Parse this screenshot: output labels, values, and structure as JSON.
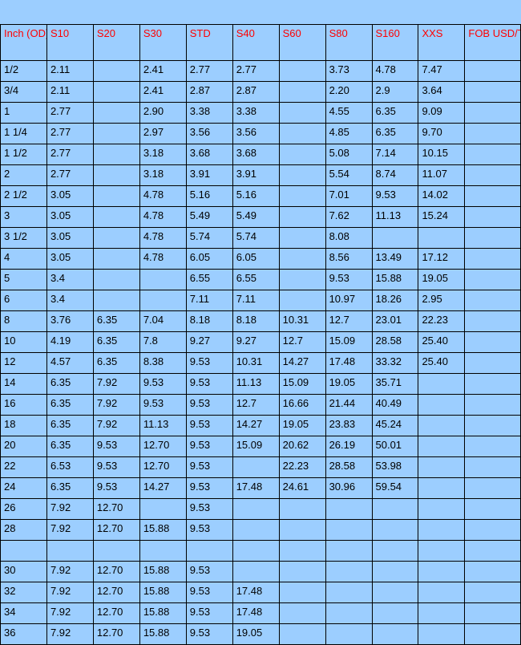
{
  "type": "table",
  "background_color": "#9cceff",
  "border_color": "#000000",
  "header_text_color": "#ff0000",
  "body_text_color": "#000000",
  "font_size_pt": 10,
  "columns": [
    {
      "key": "inch",
      "label": "Inch (OD)"
    },
    {
      "key": "s10",
      "label": "S10"
    },
    {
      "key": "s20",
      "label": "S20"
    },
    {
      "key": "s30",
      "label": "S30"
    },
    {
      "key": "std",
      "label": "STD"
    },
    {
      "key": "s40",
      "label": "S40"
    },
    {
      "key": "s60",
      "label": "S60"
    },
    {
      "key": "s80",
      "label": "S80"
    },
    {
      "key": "s160",
      "label": "S160"
    },
    {
      "key": "xxs",
      "label": "XXS"
    },
    {
      "key": "fob",
      "label": "FOB USD/Ton"
    }
  ],
  "rows": [
    {
      "inch": "1/2",
      "s10": "2.11",
      "s20": "",
      "s30": "2.41",
      "std": "2.77",
      "s40": "2.77",
      "s60": "",
      "s80": "3.73",
      "s160": "4.78",
      "xxs": "7.47",
      "fob": ""
    },
    {
      "inch": "3/4",
      "s10": "2.11",
      "s20": "",
      "s30": "2.41",
      "std": "2.87",
      "s40": "2.87",
      "s60": "",
      "s80": "2.20",
      "s160": "2.9",
      "xxs": "3.64",
      "fob": ""
    },
    {
      "inch": "1",
      "s10": "2.77",
      "s20": "",
      "s30": "2.90",
      "std": "3.38",
      "s40": "3.38",
      "s60": "",
      "s80": "4.55",
      "s160": "6.35",
      "xxs": "9.09",
      "fob": ""
    },
    {
      "inch": "1 1/4",
      "s10": "2.77",
      "s20": "",
      "s30": "2.97",
      "std": "3.56",
      "s40": "3.56",
      "s60": "",
      "s80": "4.85",
      "s160": "6.35",
      "xxs": "9.70",
      "fob": ""
    },
    {
      "inch": "1 1/2",
      "s10": "2.77",
      "s20": "",
      "s30": "3.18",
      "std": "3.68",
      "s40": "3.68",
      "s60": "",
      "s80": "5.08",
      "s160": "7.14",
      "xxs": "10.15",
      "fob": ""
    },
    {
      "inch": "2",
      "s10": "2.77",
      "s20": "",
      "s30": "3.18",
      "std": "3.91",
      "s40": "3.91",
      "s60": "",
      "s80": "5.54",
      "s160": "8.74",
      "xxs": "11.07",
      "fob": ""
    },
    {
      "inch": "2 1/2",
      "s10": "3.05",
      "s20": "",
      "s30": "4.78",
      "std": "5.16",
      "s40": "5.16",
      "s60": "",
      "s80": "7.01",
      "s160": "9.53",
      "xxs": "14.02",
      "fob": ""
    },
    {
      "inch": "3",
      "s10": "3.05",
      "s20": "",
      "s30": "4.78",
      "std": "5.49",
      "s40": "5.49",
      "s60": "",
      "s80": "7.62",
      "s160": "11.13",
      "xxs": "15.24",
      "fob": ""
    },
    {
      "inch": "3 1/2",
      "s10": "3.05",
      "s20": "",
      "s30": "4.78",
      "std": "5.74",
      "s40": "5.74",
      "s60": "",
      "s80": "8.08",
      "s160": "",
      "xxs": "",
      "fob": ""
    },
    {
      "inch": "4",
      "s10": "3.05",
      "s20": "",
      "s30": "4.78",
      "std": "6.05",
      "s40": "6.05",
      "s60": "",
      "s80": "8.56",
      "s160": "13.49",
      "xxs": "17.12",
      "fob": ""
    },
    {
      "inch": "5",
      "s10": "3.4",
      "s20": "",
      "s30": "",
      "std": "6.55",
      "s40": "6.55",
      "s60": "",
      "s80": "9.53",
      "s160": "15.88",
      "xxs": "19.05",
      "fob": ""
    },
    {
      "inch": "6",
      "s10": "3.4",
      "s20": "",
      "s30": "",
      "std": "7.11",
      "s40": "7.11",
      "s60": "",
      "s80": "10.97",
      "s160": "18.26",
      "xxs": "2.95",
      "fob": ""
    },
    {
      "inch": "8",
      "s10": "3.76",
      "s20": "6.35",
      "s30": "7.04",
      "std": "8.18",
      "s40": "8.18",
      "s60": "10.31",
      "s80": "12.7",
      "s160": "23.01",
      "xxs": "22.23",
      "fob": ""
    },
    {
      "inch": "10",
      "s10": "4.19",
      "s20": "6.35",
      "s30": "7.8",
      "std": "9.27",
      "s40": "9.27",
      "s60": "12.7",
      "s80": "15.09",
      "s160": "28.58",
      "xxs": "25.40",
      "fob": ""
    },
    {
      "inch": "12",
      "s10": "4.57",
      "s20": "6.35",
      "s30": "8.38",
      "std": "9.53",
      "s40": "10.31",
      "s60": "14.27",
      "s80": "17.48",
      "s160": "33.32",
      "xxs": "25.40",
      "fob": ""
    },
    {
      "inch": "14",
      "s10": "6.35",
      "s20": "7.92",
      "s30": "9.53",
      "std": "9.53",
      "s40": "11.13",
      "s60": "15.09",
      "s80": "19.05",
      "s160": "35.71",
      "xxs": "",
      "fob": ""
    },
    {
      "inch": "16",
      "s10": "6.35",
      "s20": "7.92",
      "s30": "9.53",
      "std": "9.53",
      "s40": "12.7",
      "s60": "16.66",
      "s80": "21.44",
      "s160": "40.49",
      "xxs": "",
      "fob": ""
    },
    {
      "inch": "18",
      "s10": "6.35",
      "s20": "7.92",
      "s30": "11.13",
      "std": "9.53",
      "s40": "14.27",
      "s60": "19.05",
      "s80": "23.83",
      "s160": "45.24",
      "xxs": "",
      "fob": ""
    },
    {
      "inch": "20",
      "s10": "6.35",
      "s20": "9.53",
      "s30": "12.70",
      "std": "9.53",
      "s40": "15.09",
      "s60": "20.62",
      "s80": "26.19",
      "s160": "50.01",
      "xxs": "",
      "fob": ""
    },
    {
      "inch": "22",
      "s10": "6.53",
      "s20": "9.53",
      "s30": "12.70",
      "std": "9.53",
      "s40": "",
      "s60": "22.23",
      "s80": "28.58",
      "s160": "53.98",
      "xxs": "",
      "fob": ""
    },
    {
      "inch": "24",
      "s10": "6.35",
      "s20": "9.53",
      "s30": "14.27",
      "std": "9.53",
      "s40": "17.48",
      "s60": "24.61",
      "s80": "30.96",
      "s160": "59.54",
      "xxs": "",
      "fob": ""
    },
    {
      "inch": "26",
      "s10": "7.92",
      "s20": "12.70",
      "s30": "",
      "std": "9.53",
      "s40": "",
      "s60": "",
      "s80": "",
      "s160": "",
      "xxs": "",
      "fob": ""
    },
    {
      "inch": "28",
      "s10": "7.92",
      "s20": "12.70",
      "s30": "15.88",
      "std": "9.53",
      "s40": "",
      "s60": "",
      "s80": "",
      "s160": "",
      "xxs": "",
      "fob": ""
    },
    {
      "_blank": true
    },
    {
      "inch": "30",
      "s10": "7.92",
      "s20": "12.70",
      "s30": "15.88",
      "std": "9.53",
      "s40": "",
      "s60": "",
      "s80": "",
      "s160": "",
      "xxs": "",
      "fob": ""
    },
    {
      "inch": "32",
      "s10": "7.92",
      "s20": "12.70",
      "s30": "15.88",
      "std": "9.53",
      "s40": "17.48",
      "s60": "",
      "s80": "",
      "s160": "",
      "xxs": "",
      "fob": ""
    },
    {
      "inch": "34",
      "s10": "7.92",
      "s20": "12.70",
      "s30": "15.88",
      "std": "9.53",
      "s40": "17.48",
      "s60": "",
      "s80": "",
      "s160": "",
      "xxs": "",
      "fob": ""
    },
    {
      "inch": "36",
      "s10": "7.92",
      "s20": "12.70",
      "s30": "15.88",
      "std": "9.53",
      "s40": "19.05",
      "s60": "",
      "s80": "",
      "s160": "",
      "xxs": "",
      "fob": ""
    }
  ]
}
